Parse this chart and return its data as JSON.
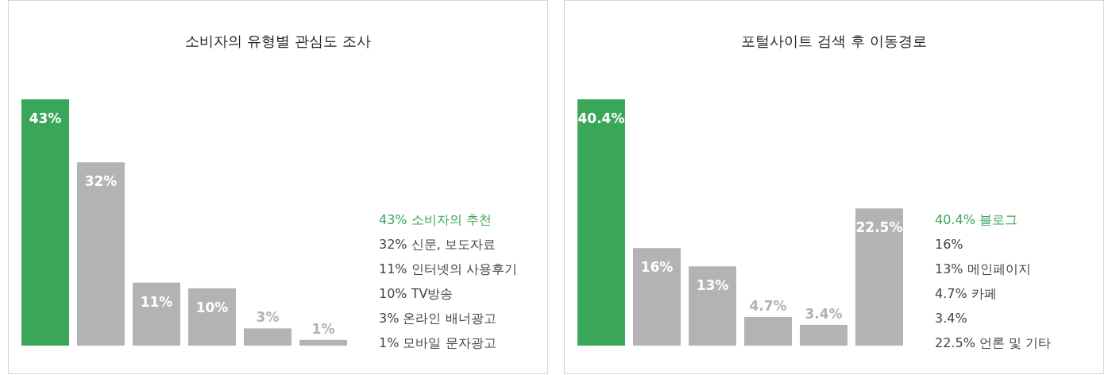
{
  "chart_data": [
    {
      "type": "bar",
      "title": "소비자의 유형별 관심도 조사",
      "categories": [
        null,
        null,
        null,
        null,
        null,
        null
      ],
      "values": [
        43,
        32,
        11,
        10,
        3,
        1
      ],
      "value_labels": [
        "43%",
        "32%",
        "11%",
        "10%",
        "3%",
        "1%"
      ],
      "colors": [
        "#3aa65a",
        "#b3b3b3",
        "#b3b3b3",
        "#b3b3b3",
        "#b3b3b3",
        "#b3b3b3"
      ],
      "annotations": [
        "43% 소비자의 추천",
        "32% 신문, 보도자료",
        "11% 인터넷의 사용후기",
        "10% TV방송",
        "3% 온라인 배너광고",
        "1% 모바일 문자광고"
      ]
    },
    {
      "type": "bar",
      "title": "포털사이트 검색 후 이동경로",
      "categories": [
        null,
        null,
        null,
        null,
        null,
        null
      ],
      "values": [
        40.4,
        16,
        13,
        4.7,
        3.4,
        22.5
      ],
      "value_labels": [
        "40.4%",
        "16%",
        "13%",
        "4.7%",
        "3.4%",
        "22.5%"
      ],
      "colors": [
        "#3aa65a",
        "#b3b3b3",
        "#b3b3b3",
        "#b3b3b3",
        "#b3b3b3",
        "#b3b3b3"
      ],
      "annotations": [
        "40.4% 블로그",
        "16%",
        "13% 메인페이지",
        "4.7% 카페",
        "3.4%",
        "22.5% 언론 및 기타"
      ]
    }
  ]
}
